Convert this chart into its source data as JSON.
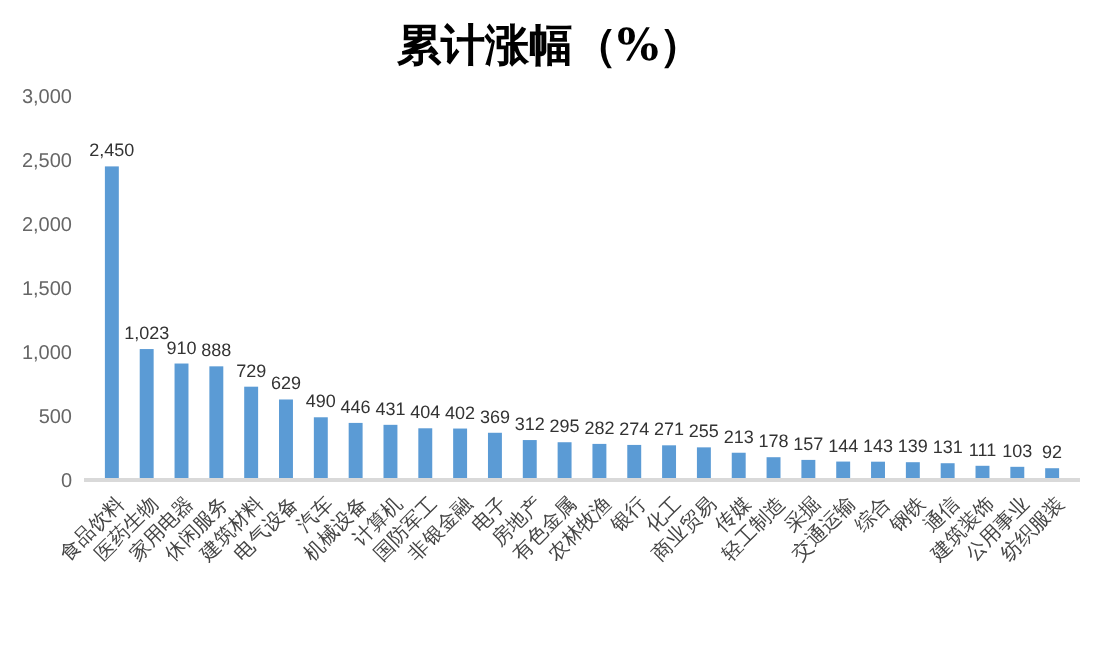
{
  "chart_data": {
    "type": "bar",
    "title": "累计涨幅（%）",
    "categories": [
      "食品饮料",
      "医药生物",
      "家用电器",
      "休闲服务",
      "建筑材料",
      "电气设备",
      "汽车",
      "机械设备",
      "计算机",
      "国防军工",
      "非银金融",
      "电子",
      "房地产",
      "有色金属",
      "农林牧渔",
      "银行",
      "化工",
      "商业贸易",
      "传媒",
      "轻工制造",
      "采掘",
      "交通运输",
      "综合",
      "钢铁",
      "通信",
      "建筑装饰",
      "公用事业",
      "纺织服装"
    ],
    "values": [
      2450,
      1023,
      910,
      888,
      729,
      629,
      490,
      446,
      431,
      404,
      402,
      369,
      312,
      295,
      282,
      274,
      271,
      255,
      213,
      178,
      157,
      144,
      143,
      139,
      131,
      111,
      103,
      92
    ],
    "color": "#5b9bd5",
    "ylim": [
      0,
      3000
    ],
    "yticks": [
      0,
      {
        "value": 500,
        "label": "500"
      },
      {
        "value": 1000,
        "label": "1,000"
      },
      {
        "value": 1500,
        "label": "1,500"
      },
      {
        "value": 2000,
        "label": "2,000"
      },
      {
        "value": 2500,
        "label": "2,500"
      },
      {
        "value": 3000,
        "label": "3,000"
      }
    ],
    "value_labels": [
      "2,450",
      "1,023",
      "910",
      "888",
      "729",
      "629",
      "490",
      "446",
      "431",
      "404",
      "402",
      "369",
      "312",
      "295",
      "282",
      "274",
      "271",
      "255",
      "213",
      "178",
      "157",
      "144",
      "143",
      "139",
      "131",
      "111",
      "103",
      "92"
    ]
  }
}
